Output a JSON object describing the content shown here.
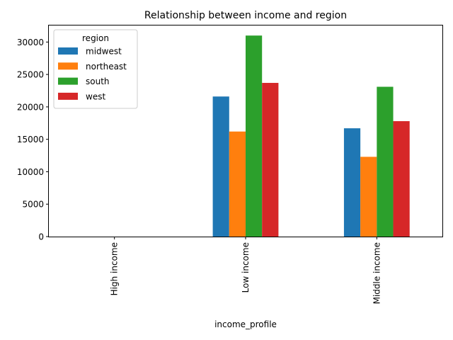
{
  "chart_data": {
    "type": "bar",
    "title": "Relationship between income and region",
    "xlabel": "income_profile",
    "ylabel": "",
    "categories": [
      "High income",
      "Low income",
      "Middle income"
    ],
    "series": [
      {
        "name": "midwest",
        "color": "#1f77b4",
        "values": [
          0,
          21600,
          16700
        ]
      },
      {
        "name": "northeast",
        "color": "#ff7f0e",
        "values": [
          0,
          16200,
          12300
        ]
      },
      {
        "name": "south",
        "color": "#2ca02c",
        "values": [
          0,
          31000,
          23100
        ]
      },
      {
        "name": "west",
        "color": "#d62728",
        "values": [
          0,
          23700,
          17800
        ]
      }
    ],
    "ylim": [
      0,
      32550
    ],
    "yticks": [
      0,
      5000,
      10000,
      15000,
      20000,
      25000,
      30000
    ],
    "legend": {
      "title": "region",
      "position": "top-left"
    },
    "grid": false
  }
}
